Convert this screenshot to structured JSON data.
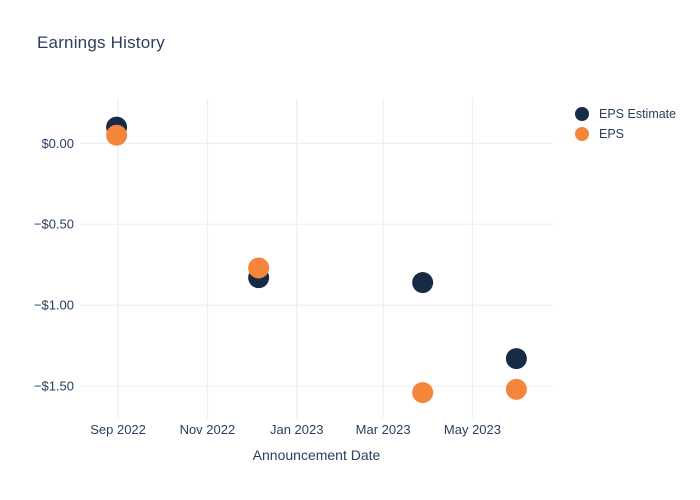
{
  "chart": {
    "title": "Earnings History",
    "xlabel": "Announcement Date"
  },
  "chart_data": {
    "type": "scatter",
    "title": "Earnings History",
    "xlabel": "Announcement Date",
    "ylabel": "",
    "x": [
      "2022-08-31",
      "2022-12-06",
      "2023-03-28",
      "2023-05-31"
    ],
    "series": [
      {
        "name": "EPS Estimate",
        "color": "#172b47",
        "values": [
          0.1,
          -0.83,
          -0.86,
          -1.33
        ]
      },
      {
        "name": "EPS",
        "color": "#f5853a",
        "values": [
          0.05,
          -0.77,
          -1.54,
          -1.52
        ]
      }
    ],
    "x_ticks": [
      {
        "date": "2022-09-01",
        "label": "Sep 2022"
      },
      {
        "date": "2022-11-01",
        "label": "Nov 2022"
      },
      {
        "date": "2023-01-01",
        "label": "Jan 2023"
      },
      {
        "date": "2023-03-01",
        "label": "Mar 2023"
      },
      {
        "date": "2023-05-01",
        "label": "May 2023"
      }
    ],
    "y_ticks": [
      {
        "value": 0,
        "label": "$0.00"
      },
      {
        "value": -0.5,
        "label": "−$0.50"
      },
      {
        "value": -1.0,
        "label": "−$1.00"
      },
      {
        "value": -1.5,
        "label": "−$1.50"
      }
    ],
    "x_range": [
      "2022-08-06",
      "2023-06-25"
    ],
    "y_range": [
      -1.66,
      0.28
    ],
    "grid": true,
    "legend_position": "right",
    "marker_radius": 10.5,
    "colors": {
      "grid": "#ebf0f8",
      "text": "#2a3f5f",
      "background": "#ffffff"
    }
  }
}
